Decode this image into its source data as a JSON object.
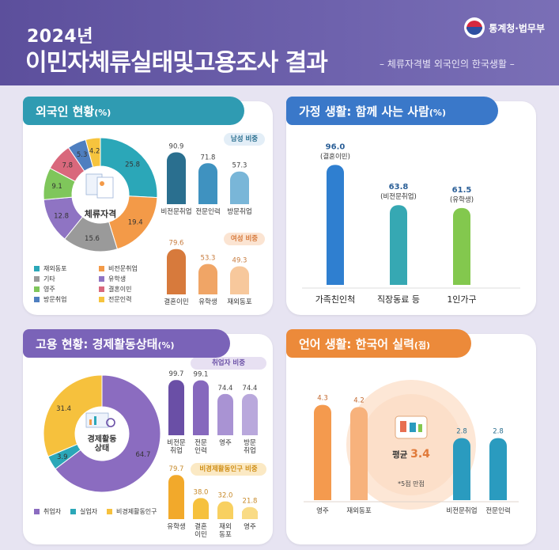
{
  "header": {
    "year": "2024년",
    "title": "이민자체류실태및고용조사 결과",
    "subtitle": "– 체류자격별 외국인의 한국생활 –",
    "org": "통계청·법무부"
  },
  "colors": {
    "header_bg": "#5c4f9c",
    "teal": "#2ba7b8",
    "purple": "#8b6cc0",
    "orange": "#f19a3e"
  },
  "panel1": {
    "title": "외국인 현황",
    "unit": "(%)",
    "center_label": "체류자격",
    "male_label": "남성 비중",
    "female_label": "여성 비중"
  },
  "panel2": {
    "title": "가정 생활: 함께 사는 사람",
    "unit": "(%)"
  },
  "panel3": {
    "title": "고용 현황: 경제활동상태",
    "unit": "(%)",
    "center_label": "경제활동\n상태",
    "employed_label": "취업자 비중",
    "inactive_label": "비경제활동인구 비중"
  },
  "panel4": {
    "title": "언어 생활: 한국어 실력",
    "unit": "(점)",
    "avg_label": "평균",
    "avg_value": "3.4",
    "note": "*5점 만점"
  },
  "chart_data": [
    {
      "type": "pie",
      "title": "외국인 현황",
      "categories": [
        "재외동포",
        "비전문취업",
        "기타",
        "유학생",
        "영주",
        "결혼이민",
        "방문취업",
        "전문인력"
      ],
      "values": [
        25.8,
        19.4,
        15.6,
        12.8,
        9.1,
        7.8,
        5.3,
        4.2
      ],
      "colors": [
        "#2ba7b8",
        "#f39a48",
        "#9a9a9a",
        "#8f74c3",
        "#7fc65b",
        "#d9687c",
        "#4f7fc0",
        "#f6c43e"
      ]
    },
    {
      "type": "bar",
      "title": "남성 비중",
      "categories": [
        "비전문취업",
        "전문인력",
        "방문취업"
      ],
      "values": [
        90.9,
        71.8,
        57.3
      ],
      "colors": [
        "#2a6f8f",
        "#3f92c0",
        "#79b6d8"
      ]
    },
    {
      "type": "bar",
      "title": "여성 비중",
      "categories": [
        "결혼이민",
        "유학생",
        "재외동포"
      ],
      "values": [
        79.6,
        53.3,
        49.3
      ],
      "colors": [
        "#d77a3c",
        "#f0a566",
        "#f7c89c"
      ]
    },
    {
      "type": "bar",
      "categories": [
        "가족친인척",
        "직장동료 등",
        "1인가구"
      ],
      "values": [
        96.0,
        63.8,
        61.5
      ],
      "labels": [
        "(결혼이민)",
        "(비전문취업)",
        "(유학생)"
      ],
      "colors": [
        "#2f7fd0",
        "#36a8b3",
        "#83c84e"
      ],
      "ylim": [
        0,
        100
      ]
    },
    {
      "type": "pie",
      "categories": [
        "취업자",
        "실업자",
        "비경제활동인구"
      ],
      "values": [
        64.7,
        3.9,
        31.4
      ],
      "colors": [
        "#8b6cc0",
        "#2ba7b8",
        "#f6c13d"
      ]
    },
    {
      "type": "bar",
      "title": "취업자 비중",
      "categories": [
        "비전문\n취업",
        "전문\n인력",
        "영주",
        "방문\n취업"
      ],
      "values": [
        99.7,
        99.1,
        74.4,
        74.4
      ],
      "colors": [
        "#6a4fa6",
        "#8668bd",
        "#a993d3",
        "#b9a8dc"
      ]
    },
    {
      "type": "bar",
      "title": "비경제활동인구 비중",
      "categories": [
        "유학생",
        "결혼\n이민",
        "재외\n동포",
        "영주"
      ],
      "values": [
        79.7,
        38.0,
        32.0,
        21.8
      ],
      "colors": [
        "#f2a92b",
        "#f6c13d",
        "#f8d060",
        "#f9db85"
      ]
    },
    {
      "type": "bar",
      "title": "언어 생활: 한국어 실력",
      "categories": [
        "영주",
        "재외동포",
        "비전문취업",
        "전문인력"
      ],
      "values": [
        4.3,
        4.2,
        2.8,
        2.8
      ],
      "colors": [
        "#f49a4e",
        "#f7b27c",
        "#2a9bbf",
        "#2a9bbf"
      ],
      "ylim": [
        0,
        5
      ]
    }
  ]
}
